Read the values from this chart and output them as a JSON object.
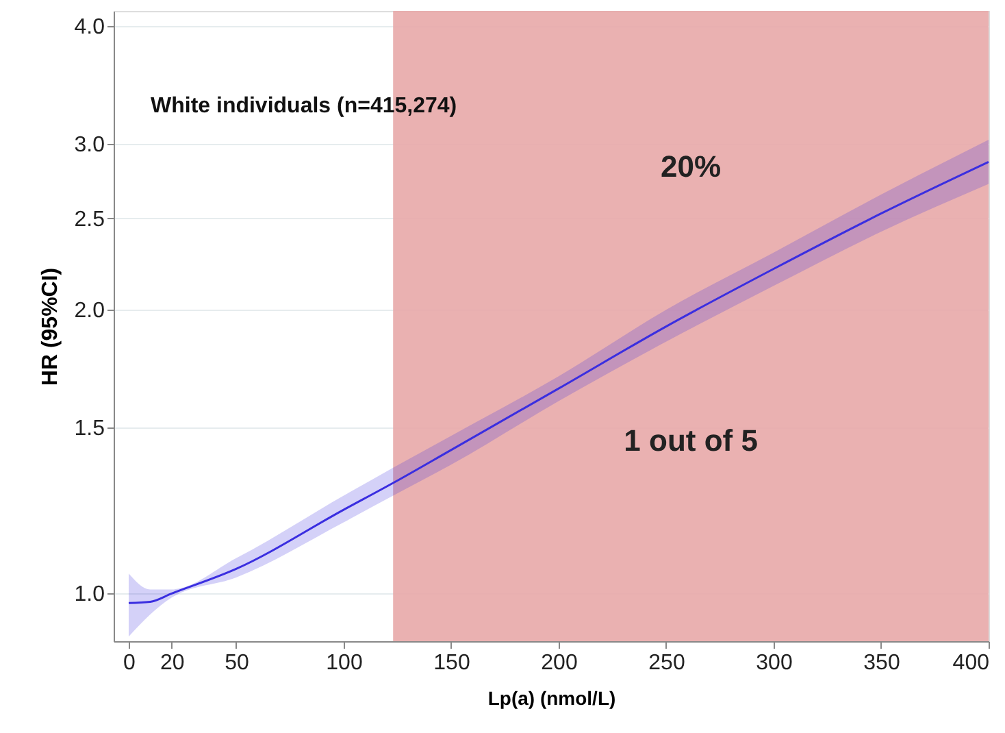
{
  "chart_data": {
    "type": "line",
    "xlabel": "Lp(a)  (nmol/L)",
    "ylabel": "HR (95%CI)",
    "log": "y",
    "xlim": [
      -7,
      400
    ],
    "xticks": [
      0,
      20,
      50,
      100,
      150,
      200,
      250,
      300,
      350,
      400
    ],
    "ylim": [
      0.89,
      4.15
    ],
    "yticks": [
      {
        "value": 1,
        "label": "1.0"
      },
      1.5,
      {
        "value": 2,
        "label": "2.0"
      },
      2.5,
      {
        "value": 3,
        "label": "3.0"
      },
      {
        "value": 4,
        "label": "4.0"
      }
    ],
    "grid": "y",
    "marker": "none",
    "line_style": "solid",
    "series": [
      {
        "color": "#3a2ee0",
        "x": [
          0,
          10,
          20,
          50,
          100,
          123,
          150,
          200,
          250,
          300,
          350,
          400
        ],
        "values": [
          0.977,
          0.98,
          1.0,
          1.062,
          1.227,
          1.31,
          1.42,
          1.65,
          1.92,
          2.21,
          2.53,
          2.87
        ],
        "lower": [
          0.9,
          0.95,
          0.99,
          1.04,
          1.19,
          1.27,
          1.37,
          1.6,
          1.85,
          2.12,
          2.42,
          2.72
        ],
        "upper": [
          1.05,
          1.01,
          1.01,
          1.09,
          1.27,
          1.36,
          1.47,
          1.7,
          2.0,
          2.3,
          2.65,
          3.03
        ]
      }
    ],
    "bands": [
      {
        "axis": "x",
        "from": 123,
        "to": 400,
        "color": "#e8a9a9"
      }
    ],
    "annotations": [
      "White individuals (n=415,274)",
      "20%",
      "1 out of 5"
    ]
  }
}
